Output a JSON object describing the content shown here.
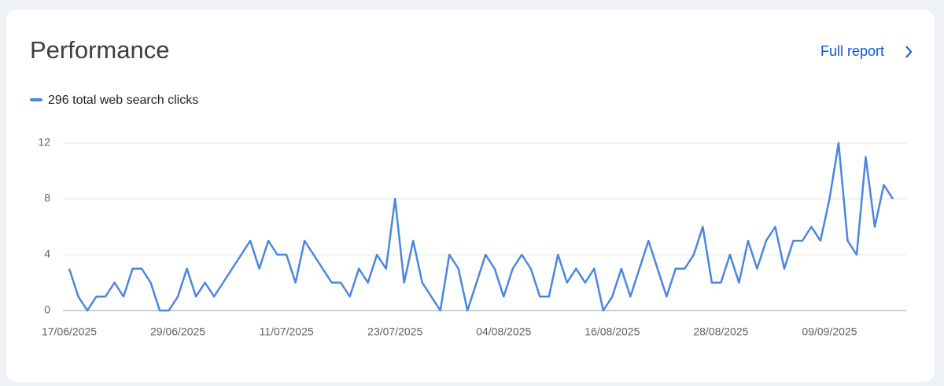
{
  "actions": {
    "full_report": "Full report"
  },
  "chart_data": {
    "type": "line",
    "title": "Performance",
    "categories": [
      "17/06/2025",
      null,
      null,
      null,
      null,
      null,
      null,
      null,
      null,
      null,
      null,
      null,
      "29/06/2025",
      null,
      null,
      null,
      null,
      null,
      null,
      null,
      null,
      null,
      null,
      null,
      "11/07/2025",
      null,
      null,
      null,
      null,
      null,
      null,
      null,
      null,
      null,
      null,
      null,
      "23/07/2025",
      null,
      null,
      null,
      null,
      null,
      null,
      null,
      null,
      null,
      null,
      null,
      "04/08/2025",
      null,
      null,
      null,
      null,
      null,
      null,
      null,
      null,
      null,
      null,
      null,
      "16/08/2025",
      null,
      null,
      null,
      null,
      null,
      null,
      null,
      null,
      null,
      null,
      null,
      "28/08/2025",
      null,
      null,
      null,
      null,
      null,
      null,
      null,
      null,
      null,
      null,
      null,
      "09/09/2025",
      null,
      null,
      null,
      null,
      null,
      null,
      null
    ],
    "series": [
      {
        "name": "296 total web search clicks",
        "color": "#4a86e0",
        "values": [
          3,
          1,
          0,
          1,
          1,
          2,
          1,
          3,
          3,
          2,
          0,
          0,
          1,
          3,
          1,
          2,
          1,
          2,
          3,
          4,
          5,
          3,
          5,
          4,
          4,
          2,
          5,
          4,
          3,
          2,
          2,
          1,
          3,
          2,
          4,
          3,
          8,
          2,
          5,
          2,
          1,
          0,
          4,
          3,
          0,
          2,
          4,
          3,
          1,
          3,
          4,
          3,
          1,
          1,
          4,
          2,
          3,
          2,
          3,
          0,
          1,
          3,
          1,
          3,
          5,
          3,
          1,
          3,
          3,
          4,
          6,
          2,
          2,
          4,
          2,
          5,
          3,
          5,
          6,
          3,
          5,
          5,
          6,
          5,
          8,
          12,
          5,
          4,
          11,
          6,
          9,
          8
        ]
      }
    ],
    "ylim": [
      0,
      12
    ],
    "yticks": [
      0,
      4,
      8,
      12
    ],
    "grid": true
  }
}
